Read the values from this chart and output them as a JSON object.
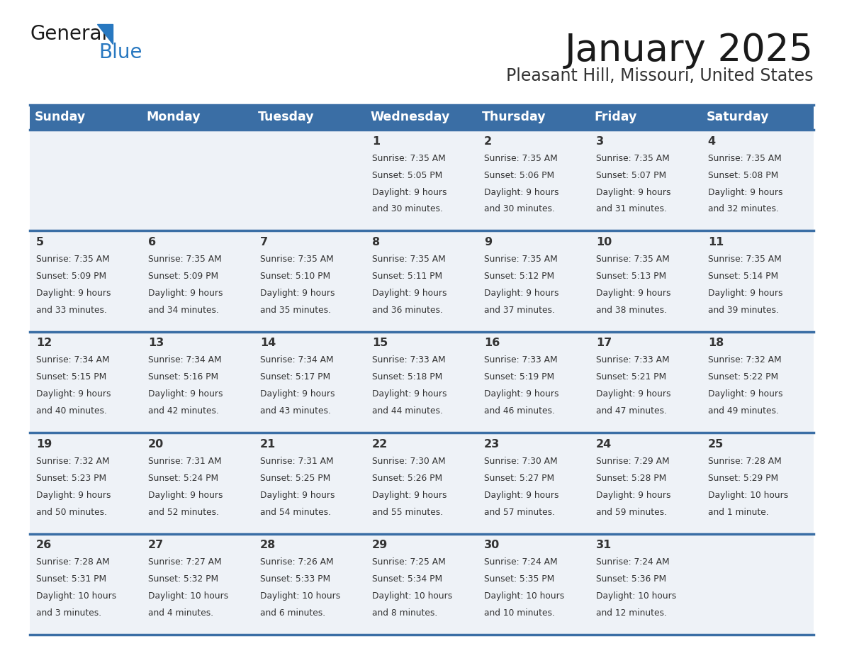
{
  "title": "January 2025",
  "subtitle": "Pleasant Hill, Missouri, United States",
  "header_color": "#3a6ea5",
  "header_text_color": "#ffffff",
  "cell_bg_color": "#eef2f7",
  "day_names": [
    "Sunday",
    "Monday",
    "Tuesday",
    "Wednesday",
    "Thursday",
    "Friday",
    "Saturday"
  ],
  "title_color": "#1a1a1a",
  "subtitle_color": "#333333",
  "line_color": "#3a6ea5",
  "text_color": "#333333",
  "logo_black": "#1a1a1a",
  "logo_blue": "#2878c0",
  "triangle_color": "#2878c0",
  "days": [
    {
      "day": 1,
      "col": 3,
      "row": 0,
      "sunrise": "7:35 AM",
      "sunset": "5:05 PM",
      "daylight": "9 hours\nand 30 minutes."
    },
    {
      "day": 2,
      "col": 4,
      "row": 0,
      "sunrise": "7:35 AM",
      "sunset": "5:06 PM",
      "daylight": "9 hours\nand 30 minutes."
    },
    {
      "day": 3,
      "col": 5,
      "row": 0,
      "sunrise": "7:35 AM",
      "sunset": "5:07 PM",
      "daylight": "9 hours\nand 31 minutes."
    },
    {
      "day": 4,
      "col": 6,
      "row": 0,
      "sunrise": "7:35 AM",
      "sunset": "5:08 PM",
      "daylight": "9 hours\nand 32 minutes."
    },
    {
      "day": 5,
      "col": 0,
      "row": 1,
      "sunrise": "7:35 AM",
      "sunset": "5:09 PM",
      "daylight": "9 hours\nand 33 minutes."
    },
    {
      "day": 6,
      "col": 1,
      "row": 1,
      "sunrise": "7:35 AM",
      "sunset": "5:09 PM",
      "daylight": "9 hours\nand 34 minutes."
    },
    {
      "day": 7,
      "col": 2,
      "row": 1,
      "sunrise": "7:35 AM",
      "sunset": "5:10 PM",
      "daylight": "9 hours\nand 35 minutes."
    },
    {
      "day": 8,
      "col": 3,
      "row": 1,
      "sunrise": "7:35 AM",
      "sunset": "5:11 PM",
      "daylight": "9 hours\nand 36 minutes."
    },
    {
      "day": 9,
      "col": 4,
      "row": 1,
      "sunrise": "7:35 AM",
      "sunset": "5:12 PM",
      "daylight": "9 hours\nand 37 minutes."
    },
    {
      "day": 10,
      "col": 5,
      "row": 1,
      "sunrise": "7:35 AM",
      "sunset": "5:13 PM",
      "daylight": "9 hours\nand 38 minutes."
    },
    {
      "day": 11,
      "col": 6,
      "row": 1,
      "sunrise": "7:35 AM",
      "sunset": "5:14 PM",
      "daylight": "9 hours\nand 39 minutes."
    },
    {
      "day": 12,
      "col": 0,
      "row": 2,
      "sunrise": "7:34 AM",
      "sunset": "5:15 PM",
      "daylight": "9 hours\nand 40 minutes."
    },
    {
      "day": 13,
      "col": 1,
      "row": 2,
      "sunrise": "7:34 AM",
      "sunset": "5:16 PM",
      "daylight": "9 hours\nand 42 minutes."
    },
    {
      "day": 14,
      "col": 2,
      "row": 2,
      "sunrise": "7:34 AM",
      "sunset": "5:17 PM",
      "daylight": "9 hours\nand 43 minutes."
    },
    {
      "day": 15,
      "col": 3,
      "row": 2,
      "sunrise": "7:33 AM",
      "sunset": "5:18 PM",
      "daylight": "9 hours\nand 44 minutes."
    },
    {
      "day": 16,
      "col": 4,
      "row": 2,
      "sunrise": "7:33 AM",
      "sunset": "5:19 PM",
      "daylight": "9 hours\nand 46 minutes."
    },
    {
      "day": 17,
      "col": 5,
      "row": 2,
      "sunrise": "7:33 AM",
      "sunset": "5:21 PM",
      "daylight": "9 hours\nand 47 minutes."
    },
    {
      "day": 18,
      "col": 6,
      "row": 2,
      "sunrise": "7:32 AM",
      "sunset": "5:22 PM",
      "daylight": "9 hours\nand 49 minutes."
    },
    {
      "day": 19,
      "col": 0,
      "row": 3,
      "sunrise": "7:32 AM",
      "sunset": "5:23 PM",
      "daylight": "9 hours\nand 50 minutes."
    },
    {
      "day": 20,
      "col": 1,
      "row": 3,
      "sunrise": "7:31 AM",
      "sunset": "5:24 PM",
      "daylight": "9 hours\nand 52 minutes."
    },
    {
      "day": 21,
      "col": 2,
      "row": 3,
      "sunrise": "7:31 AM",
      "sunset": "5:25 PM",
      "daylight": "9 hours\nand 54 minutes."
    },
    {
      "day": 22,
      "col": 3,
      "row": 3,
      "sunrise": "7:30 AM",
      "sunset": "5:26 PM",
      "daylight": "9 hours\nand 55 minutes."
    },
    {
      "day": 23,
      "col": 4,
      "row": 3,
      "sunrise": "7:30 AM",
      "sunset": "5:27 PM",
      "daylight": "9 hours\nand 57 minutes."
    },
    {
      "day": 24,
      "col": 5,
      "row": 3,
      "sunrise": "7:29 AM",
      "sunset": "5:28 PM",
      "daylight": "9 hours\nand 59 minutes."
    },
    {
      "day": 25,
      "col": 6,
      "row": 3,
      "sunrise": "7:28 AM",
      "sunset": "5:29 PM",
      "daylight": "10 hours\nand 1 minute."
    },
    {
      "day": 26,
      "col": 0,
      "row": 4,
      "sunrise": "7:28 AM",
      "sunset": "5:31 PM",
      "daylight": "10 hours\nand 3 minutes."
    },
    {
      "day": 27,
      "col": 1,
      "row": 4,
      "sunrise": "7:27 AM",
      "sunset": "5:32 PM",
      "daylight": "10 hours\nand 4 minutes."
    },
    {
      "day": 28,
      "col": 2,
      "row": 4,
      "sunrise": "7:26 AM",
      "sunset": "5:33 PM",
      "daylight": "10 hours\nand 6 minutes."
    },
    {
      "day": 29,
      "col": 3,
      "row": 4,
      "sunrise": "7:25 AM",
      "sunset": "5:34 PM",
      "daylight": "10 hours\nand 8 minutes."
    },
    {
      "day": 30,
      "col": 4,
      "row": 4,
      "sunrise": "7:24 AM",
      "sunset": "5:35 PM",
      "daylight": "10 hours\nand 10 minutes."
    },
    {
      "day": 31,
      "col": 5,
      "row": 4,
      "sunrise": "7:24 AM",
      "sunset": "5:36 PM",
      "daylight": "10 hours\nand 12 minutes."
    }
  ]
}
